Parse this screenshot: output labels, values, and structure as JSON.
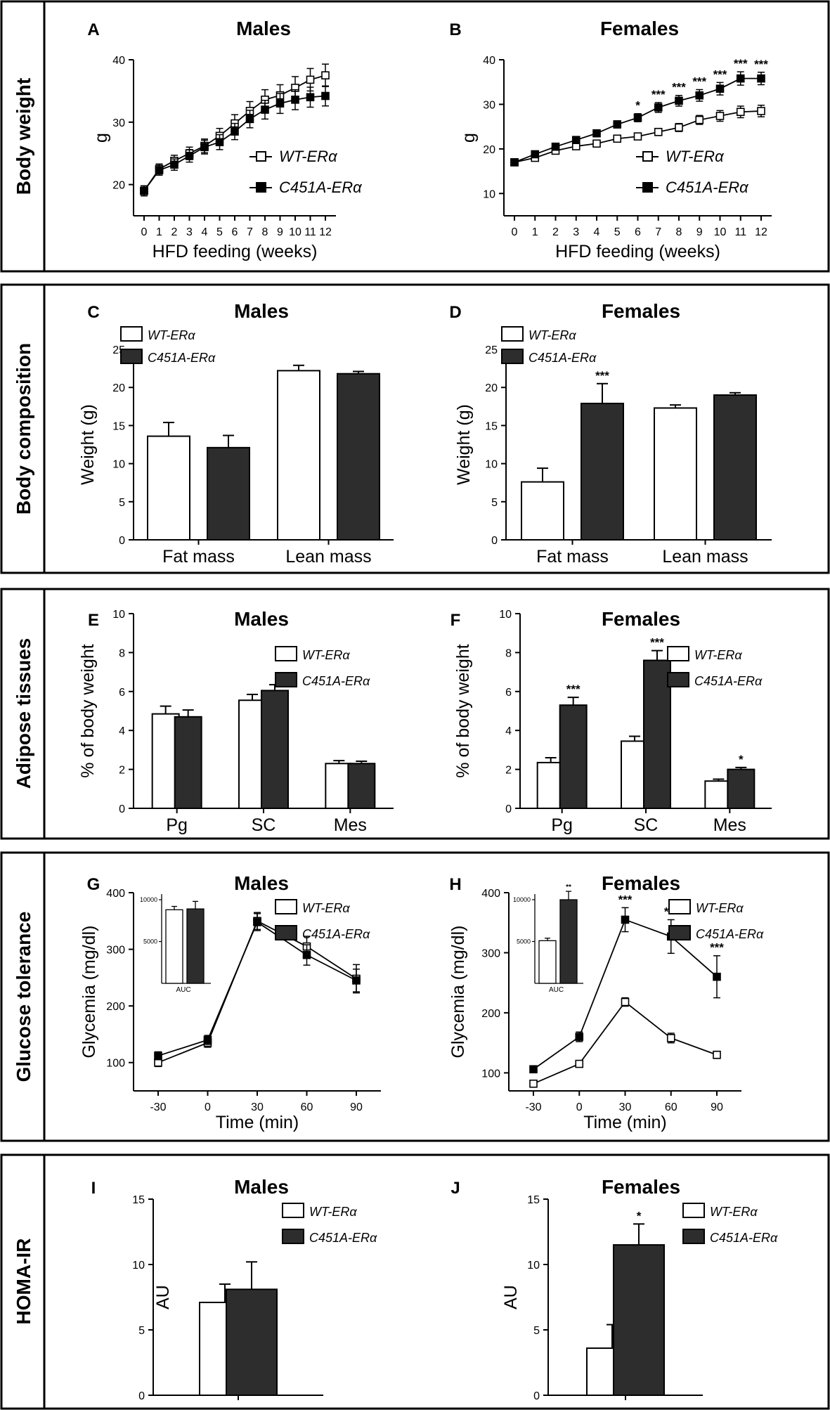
{
  "legend": {
    "wt": "WT-ERα",
    "c451a": "C451A-ERα"
  },
  "rows": [
    {
      "label": "Body weight"
    },
    {
      "label": "Body composition"
    },
    {
      "label": "Adipose tissues"
    },
    {
      "label": "Glucose tolerance"
    },
    {
      "label": "HOMA-IR"
    }
  ],
  "chart_data": [
    {
      "id": "A",
      "letter": "A",
      "title": "Males",
      "type": "line",
      "xlabel": "HFD feeding (weeks)",
      "ylabel": "g",
      "ylim": [
        15,
        40
      ],
      "yticks": [
        20,
        30,
        40
      ],
      "x": [
        0,
        1,
        2,
        3,
        4,
        5,
        6,
        7,
        8,
        9,
        10,
        11,
        12
      ],
      "series": [
        {
          "name": "WT-ERα",
          "values": [
            19,
            22.5,
            23.8,
            25,
            26.2,
            27.8,
            29.8,
            31.8,
            33.6,
            34.3,
            35.5,
            36.8,
            37.5
          ],
          "errors": [
            0.8,
            0.8,
            0.9,
            1,
            1.1,
            1.2,
            1.4,
            1.5,
            1.6,
            1.7,
            1.8,
            1.8,
            1.8
          ]
        },
        {
          "name": "C451A-ERα",
          "values": [
            19,
            22.3,
            23.2,
            24.6,
            26,
            26.8,
            28.5,
            30.5,
            32,
            33,
            33.6,
            34,
            34.2
          ],
          "errors": [
            0.8,
            0.8,
            0.9,
            1,
            1.1,
            1.2,
            1.3,
            1.4,
            1.5,
            1.6,
            1.6,
            1.6,
            1.6
          ]
        }
      ],
      "annotations": []
    },
    {
      "id": "B",
      "letter": "B",
      "title": "Females",
      "type": "line",
      "xlabel": "HFD feeding (weeks)",
      "ylabel": "g",
      "ylim": [
        5,
        40
      ],
      "yticks": [
        10,
        20,
        30,
        40
      ],
      "x": [
        0,
        1,
        2,
        3,
        4,
        5,
        6,
        7,
        8,
        9,
        10,
        11,
        12
      ],
      "series": [
        {
          "name": "WT-ERα",
          "values": [
            17,
            18,
            19.6,
            20.6,
            21.2,
            22.3,
            22.8,
            23.8,
            24.8,
            26.5,
            27.4,
            28.3,
            28.5
          ],
          "errors": [
            0.5,
            0.5,
            0.5,
            0.6,
            0.6,
            0.7,
            0.7,
            0.8,
            0.9,
            1,
            1.2,
            1.3,
            1.3
          ]
        },
        {
          "name": "C451A-ERα",
          "values": [
            17,
            18.8,
            20.5,
            22,
            23.5,
            25.5,
            27,
            29.3,
            30.8,
            32,
            33.5,
            35.8,
            35.8
          ],
          "errors": [
            0.5,
            0.5,
            0.6,
            0.6,
            0.7,
            0.8,
            0.9,
            1.1,
            1.2,
            1.3,
            1.4,
            1.5,
            1.4
          ]
        }
      ],
      "annotations": [
        {
          "x": 6,
          "text": "*"
        },
        {
          "x": 7,
          "text": "***"
        },
        {
          "x": 8,
          "text": "***"
        },
        {
          "x": 9,
          "text": "***"
        },
        {
          "x": 10,
          "text": "***"
        },
        {
          "x": 11,
          "text": "***"
        },
        {
          "x": 12,
          "text": "***"
        }
      ]
    },
    {
      "id": "C",
      "letter": "C",
      "title": "Males",
      "type": "bar",
      "categories": [
        "Fat mass",
        "Lean mass"
      ],
      "xlabel": "",
      "ylabel": "Weight (g)",
      "ylim": [
        0,
        25
      ],
      "yticks": [
        0,
        5,
        10,
        15,
        20,
        25
      ],
      "series": [
        {
          "name": "WT-ERα",
          "values": [
            13.6,
            22.2
          ],
          "errors": [
            1.8,
            0.7
          ]
        },
        {
          "name": "C451A-ERα",
          "values": [
            12.1,
            21.8
          ],
          "errors": [
            1.6,
            0.3
          ]
        }
      ],
      "annotations": []
    },
    {
      "id": "D",
      "letter": "D",
      "title": "Females",
      "type": "bar",
      "categories": [
        "Fat mass",
        "Lean mass"
      ],
      "xlabel": "",
      "ylabel": "Weight (g)",
      "ylim": [
        0,
        25
      ],
      "yticks": [
        0,
        5,
        10,
        15,
        20,
        25
      ],
      "series": [
        {
          "name": "WT-ERα",
          "values": [
            7.6,
            17.3
          ],
          "errors": [
            1.8,
            0.4
          ]
        },
        {
          "name": "C451A-ERα",
          "values": [
            17.9,
            19
          ],
          "errors": [
            2.6,
            0.3
          ]
        }
      ],
      "annotations": [
        {
          "series": 1,
          "index": 0,
          "text": "***"
        }
      ]
    },
    {
      "id": "E",
      "letter": "E",
      "title": "Males",
      "type": "bar",
      "categories": [
        "Pg",
        "SC",
        "Mes"
      ],
      "xlabel": "",
      "ylabel": "% of body weight",
      "ylim": [
        0,
        10
      ],
      "yticks": [
        0,
        2,
        4,
        6,
        8,
        10
      ],
      "series": [
        {
          "name": "WT-ERα",
          "values": [
            4.85,
            5.55,
            2.3
          ],
          "errors": [
            0.4,
            0.3,
            0.15
          ]
        },
        {
          "name": "C451A-ERα",
          "values": [
            4.7,
            6.05,
            2.3
          ],
          "errors": [
            0.35,
            0.3,
            0.12
          ]
        }
      ],
      "annotations": []
    },
    {
      "id": "F",
      "letter": "F",
      "title": "Females",
      "type": "bar",
      "categories": [
        "Pg",
        "SC",
        "Mes"
      ],
      "xlabel": "",
      "ylabel": "% of body weight",
      "ylim": [
        0,
        10
      ],
      "yticks": [
        0,
        2,
        4,
        6,
        8,
        10
      ],
      "series": [
        {
          "name": "WT-ERα",
          "values": [
            2.35,
            3.45,
            1.4
          ],
          "errors": [
            0.25,
            0.25,
            0.1
          ]
        },
        {
          "name": "C451A-ERα",
          "values": [
            5.3,
            7.6,
            2
          ],
          "errors": [
            0.4,
            0.5,
            0.1
          ]
        }
      ],
      "annotations": [
        {
          "series": 1,
          "index": 0,
          "text": "***"
        },
        {
          "series": 1,
          "index": 1,
          "text": "***"
        },
        {
          "series": 1,
          "index": 2,
          "text": "*"
        }
      ]
    },
    {
      "id": "G",
      "letter": "G",
      "title": "Males",
      "type": "line",
      "xlabel": "Time (min)",
      "ylabel": "Glycemia (mg/dl)",
      "ylim": [
        50,
        400
      ],
      "yticks": [
        100,
        200,
        300,
        400
      ],
      "x": [
        -30,
        0,
        30,
        60,
        90
      ],
      "series": [
        {
          "name": "WT-ERα",
          "values": [
            100,
            135,
            350,
            305,
            248
          ],
          "errors": [
            7,
            8,
            15,
            18,
            25
          ]
        },
        {
          "name": "C451A-ERα",
          "values": [
            112,
            140,
            348,
            290,
            245
          ],
          "errors": [
            7,
            8,
            15,
            18,
            20
          ]
        }
      ],
      "annotations": [],
      "inset": {
        "categories": [
          "AUC"
        ],
        "ylim": [
          0,
          10000
        ],
        "yticks": [
          5000,
          10000
        ],
        "values": [
          8800,
          8900
        ],
        "errors": [
          400,
          900
        ],
        "annotations": [],
        "label": "AUC"
      }
    },
    {
      "id": "H",
      "letter": "H",
      "title": "Females",
      "type": "line",
      "xlabel": "Time (min)",
      "ylabel": "Glycemia (mg/dl)",
      "ylim": [
        70,
        400
      ],
      "yticks": [
        100,
        200,
        300,
        400
      ],
      "x": [
        -30,
        0,
        30,
        60,
        90
      ],
      "series": [
        {
          "name": "WT-ERα",
          "values": [
            82,
            115,
            218,
            158,
            130
          ],
          "errors": [
            4,
            5,
            7,
            8,
            6
          ]
        },
        {
          "name": "C451A-ERα",
          "values": [
            106,
            160,
            355,
            327,
            260
          ],
          "errors": [
            5,
            8,
            20,
            28,
            35
          ]
        }
      ],
      "annotations": [
        {
          "x": 30,
          "text": "***"
        },
        {
          "x": 60,
          "text": "***"
        },
        {
          "x": 90,
          "text": "***"
        }
      ],
      "inset": {
        "categories": [
          "AUC"
        ],
        "ylim": [
          0,
          10000
        ],
        "yticks": [
          5000,
          10000
        ],
        "values": [
          5100,
          10000
        ],
        "errors": [
          300,
          1000
        ],
        "annotations": [
          {
            "series": 1,
            "text": "**"
          }
        ],
        "label": "AUC"
      }
    },
    {
      "id": "I",
      "letter": "I",
      "title": "Males",
      "type": "bar",
      "categories": [
        ""
      ],
      "xlabel": "",
      "ylabel": "AU",
      "ylim": [
        0,
        15
      ],
      "yticks": [
        0,
        5,
        10,
        15
      ],
      "series": [
        {
          "name": "WT-ERα",
          "values": [
            7.1
          ],
          "errors": [
            1.4
          ]
        },
        {
          "name": "C451A-ERα",
          "values": [
            8.1
          ],
          "errors": [
            2.1
          ]
        }
      ],
      "annotations": []
    },
    {
      "id": "J",
      "letter": "J",
      "title": "Females",
      "type": "bar",
      "categories": [
        ""
      ],
      "xlabel": "",
      "ylabel": "AU",
      "ylim": [
        0,
        15
      ],
      "yticks": [
        0,
        5,
        10,
        15
      ],
      "series": [
        {
          "name": "WT-ERα",
          "values": [
            3.6
          ],
          "errors": [
            1.8
          ]
        },
        {
          "name": "C451A-ERα",
          "values": [
            11.5
          ],
          "errors": [
            1.6
          ]
        }
      ],
      "annotations": [
        {
          "series": 1,
          "index": 0,
          "text": "*"
        }
      ]
    }
  ]
}
